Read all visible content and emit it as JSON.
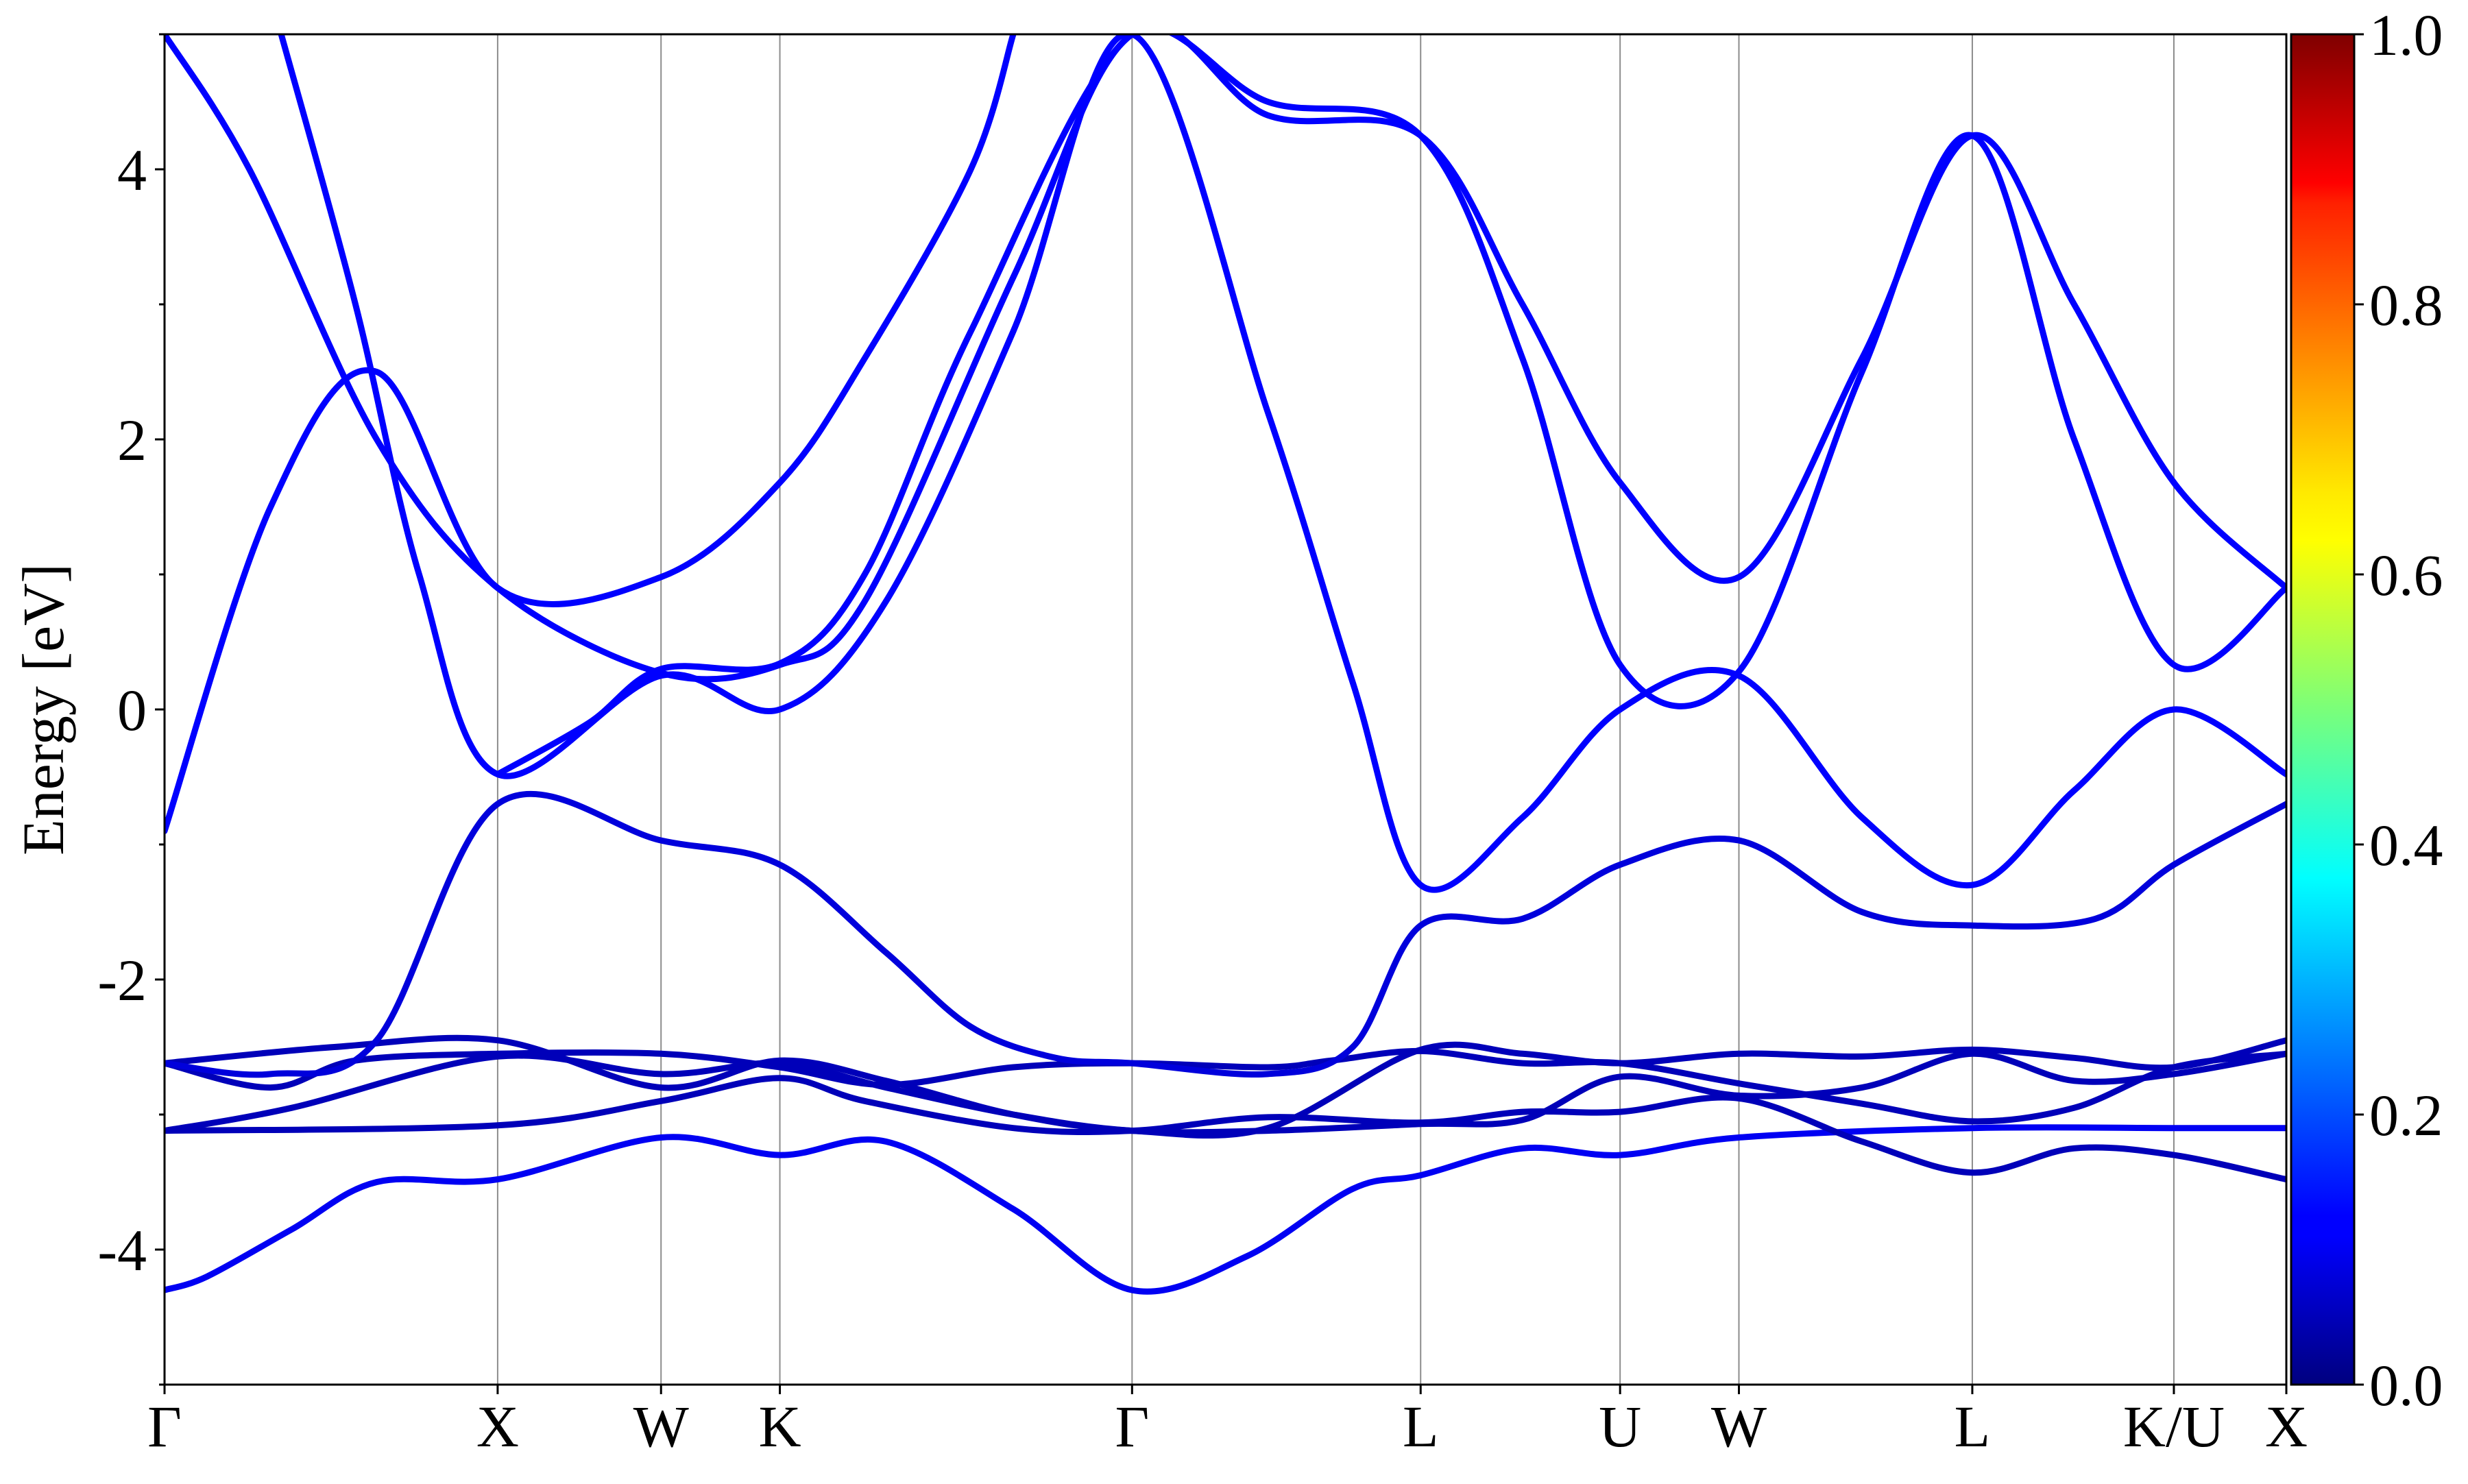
{
  "chart_data": {
    "type": "line",
    "ylabel": "Energy [eV]",
    "xlabel": "",
    "ylim": [
      -5,
      5
    ],
    "y_ticks": [
      "4",
      "2",
      "0",
      "-2",
      "-4"
    ],
    "y_tick_values": [
      4,
      2,
      0,
      -2,
      -4
    ],
    "high_symmetry_points": [
      {
        "label": "Γ",
        "k": 0.0
      },
      {
        "label": "X",
        "k": 0.157
      },
      {
        "label": "W",
        "k": 0.234
      },
      {
        "label": "K",
        "k": 0.29
      },
      {
        "label": "Γ",
        "k": 0.456
      },
      {
        "label": "L",
        "k": 0.592
      },
      {
        "label": "U",
        "k": 0.686
      },
      {
        "label": "W",
        "k": 0.742
      },
      {
        "label": "L",
        "k": 0.852
      },
      {
        "label": "K/U",
        "k": 0.947
      },
      {
        "label": "X",
        "k": 1.0
      }
    ],
    "colorbar": {
      "range": [
        0.0,
        1.0
      ],
      "ticks": [
        "1.0",
        "0.8",
        "0.6",
        "0.4",
        "0.2",
        "0.0"
      ],
      "tick_values": [
        1.0,
        0.8,
        0.6,
        0.4,
        0.2,
        0.0
      ],
      "colormap": "jet"
    },
    "grid": "vertical lines at high-symmetry points",
    "series": [
      {
        "weight": 0.1,
        "points": [
          [
            0.0,
            -4.3
          ],
          [
            0.02,
            -4.2
          ],
          [
            0.06,
            -3.85
          ],
          [
            0.1,
            -3.5
          ],
          [
            0.157,
            -3.48
          ],
          [
            0.234,
            -3.17
          ],
          [
            0.29,
            -3.3
          ],
          [
            0.34,
            -3.2
          ],
          [
            0.4,
            -3.7
          ],
          [
            0.456,
            -4.3
          ],
          [
            0.51,
            -4.05
          ],
          [
            0.56,
            -3.55
          ],
          [
            0.592,
            -3.45
          ],
          [
            0.64,
            -3.25
          ],
          [
            0.686,
            -3.3
          ],
          [
            0.742,
            -3.17
          ],
          [
            0.852,
            -3.1
          ],
          [
            0.947,
            -3.1
          ],
          [
            1.0,
            -3.1
          ]
        ]
      },
      {
        "weight": 0.05,
        "points": [
          [
            0.0,
            -3.12
          ],
          [
            0.157,
            -3.08
          ],
          [
            0.234,
            -2.9
          ],
          [
            0.29,
            -2.73
          ],
          [
            0.33,
            -2.9
          ],
          [
            0.4,
            -3.1
          ],
          [
            0.456,
            -3.12
          ],
          [
            0.52,
            -3.02
          ],
          [
            0.592,
            -3.06
          ],
          [
            0.64,
            -2.98
          ],
          [
            0.686,
            -2.98
          ],
          [
            0.742,
            -2.88
          ],
          [
            0.8,
            -3.2
          ],
          [
            0.852,
            -3.43
          ],
          [
            0.9,
            -3.25
          ],
          [
            0.947,
            -3.3
          ],
          [
            1.0,
            -3.48
          ]
        ]
      },
      {
        "weight": 0.05,
        "points": [
          [
            0.0,
            -3.12
          ],
          [
            0.06,
            -2.95
          ],
          [
            0.157,
            -2.57
          ],
          [
            0.234,
            -2.7
          ],
          [
            0.29,
            -2.62
          ],
          [
            0.34,
            -2.8
          ],
          [
            0.4,
            -3.0
          ],
          [
            0.456,
            -3.12
          ],
          [
            0.52,
            -3.12
          ],
          [
            0.592,
            -3.07
          ],
          [
            0.64,
            -3.04
          ],
          [
            0.686,
            -2.72
          ],
          [
            0.742,
            -2.86
          ],
          [
            0.8,
            -2.8
          ],
          [
            0.852,
            -2.55
          ],
          [
            0.9,
            -2.75
          ],
          [
            0.947,
            -2.7
          ],
          [
            1.0,
            -2.55
          ]
        ]
      },
      {
        "weight": 0.05,
        "points": [
          [
            0.0,
            -2.62
          ],
          [
            0.08,
            -2.5
          ],
          [
            0.157,
            -2.45
          ],
          [
            0.234,
            -2.8
          ],
          [
            0.29,
            -2.6
          ],
          [
            0.34,
            -2.75
          ],
          [
            0.4,
            -3.0
          ],
          [
            0.456,
            -3.12
          ],
          [
            0.52,
            -3.1
          ],
          [
            0.592,
            -2.52
          ],
          [
            0.64,
            -2.55
          ],
          [
            0.686,
            -2.62
          ],
          [
            0.742,
            -2.55
          ],
          [
            0.8,
            -2.57
          ],
          [
            0.852,
            -2.52
          ],
          [
            0.9,
            -2.58
          ],
          [
            0.947,
            -2.65
          ],
          [
            1.0,
            -2.45
          ]
        ]
      },
      {
        "weight": 0.05,
        "points": [
          [
            0.0,
            -2.62
          ],
          [
            0.05,
            -2.8
          ],
          [
            0.09,
            -2.6
          ],
          [
            0.157,
            -2.55
          ],
          [
            0.234,
            -2.55
          ],
          [
            0.29,
            -2.65
          ],
          [
            0.34,
            -2.78
          ],
          [
            0.4,
            -2.65
          ],
          [
            0.456,
            -2.62
          ],
          [
            0.52,
            -2.65
          ],
          [
            0.55,
            -2.6
          ],
          [
            0.592,
            -2.53
          ],
          [
            0.64,
            -2.62
          ],
          [
            0.686,
            -2.62
          ],
          [
            0.742,
            -2.77
          ],
          [
            0.8,
            -2.92
          ],
          [
            0.852,
            -3.05
          ],
          [
            0.9,
            -2.95
          ],
          [
            0.947,
            -2.65
          ],
          [
            1.0,
            -2.55
          ]
        ]
      },
      {
        "weight": 0.08,
        "points": [
          [
            0.0,
            -2.62
          ],
          [
            0.05,
            -2.7
          ],
          [
            0.1,
            -2.45
          ],
          [
            0.157,
            -0.7
          ],
          [
            0.234,
            -0.97
          ],
          [
            0.29,
            -1.15
          ],
          [
            0.34,
            -1.8
          ],
          [
            0.38,
            -2.35
          ],
          [
            0.42,
            -2.58
          ],
          [
            0.456,
            -2.62
          ],
          [
            0.52,
            -2.7
          ],
          [
            0.56,
            -2.5
          ],
          [
            0.592,
            -1.6
          ],
          [
            0.64,
            -1.55
          ],
          [
            0.686,
            -1.15
          ],
          [
            0.742,
            -0.97
          ],
          [
            0.8,
            -1.5
          ],
          [
            0.852,
            -1.6
          ],
          [
            0.91,
            -1.55
          ],
          [
            0.947,
            -1.15
          ],
          [
            1.0,
            -0.7
          ]
        ]
      },
      {
        "weight": 0.12,
        "points": [
          [
            0.0,
            -0.9
          ],
          [
            0.05,
            1.5
          ],
          [
            0.1,
            2.5
          ],
          [
            0.157,
            0.9
          ],
          [
            0.234,
            0.98
          ],
          [
            0.29,
            1.68
          ],
          [
            0.33,
            2.6
          ],
          [
            0.38,
            4.0
          ],
          [
            0.4,
            5.0
          ]
        ]
      },
      {
        "weight": 0.12,
        "points": [
          [
            0.055,
            5.0
          ],
          [
            0.09,
            3.0
          ],
          [
            0.12,
            1.0
          ],
          [
            0.157,
            -0.48
          ],
          [
            0.234,
            0.25
          ],
          [
            0.29,
            0.0
          ],
          [
            0.34,
            0.8
          ],
          [
            0.4,
            2.8
          ],
          [
            0.456,
            5.0
          ],
          [
            0.52,
            2.2
          ],
          [
            0.56,
            0.2
          ],
          [
            0.592,
            -1.3
          ],
          [
            0.64,
            -0.8
          ],
          [
            0.686,
            0.0
          ],
          [
            0.742,
            0.25
          ],
          [
            0.8,
            -0.8
          ],
          [
            0.852,
            -1.3
          ],
          [
            0.9,
            -0.6
          ],
          [
            0.947,
            0.0
          ],
          [
            1.0,
            -0.48
          ]
        ]
      },
      {
        "weight": 0.12,
        "points": [
          [
            0.0,
            5.0
          ],
          [
            0.04,
            4.0
          ],
          [
            0.1,
            2.0
          ],
          [
            0.157,
            0.9
          ],
          [
            0.234,
            0.27
          ],
          [
            0.29,
            0.33
          ],
          [
            0.33,
            0.8
          ],
          [
            0.4,
            3.2
          ],
          [
            0.456,
            5.0
          ],
          [
            0.52,
            4.5
          ],
          [
            0.592,
            4.25
          ],
          [
            0.64,
            2.6
          ],
          [
            0.686,
            0.33
          ],
          [
            0.742,
            0.28
          ],
          [
            0.8,
            2.5
          ],
          [
            0.852,
            4.25
          ],
          [
            0.9,
            2.0
          ],
          [
            0.947,
            0.33
          ],
          [
            1.0,
            0.9
          ]
        ]
      },
      {
        "weight": 0.12,
        "points": [
          [
            0.157,
            -0.48
          ],
          [
            0.2,
            -0.1
          ],
          [
            0.234,
            0.3
          ],
          [
            0.29,
            0.34
          ],
          [
            0.33,
            1.0
          ],
          [
            0.38,
            2.8
          ],
          [
            0.456,
            5.0
          ],
          [
            0.52,
            4.4
          ],
          [
            0.592,
            4.25
          ],
          [
            0.64,
            3.0
          ],
          [
            0.686,
            1.68
          ],
          [
            0.742,
            0.98
          ],
          [
            0.8,
            2.6
          ],
          [
            0.852,
            4.25
          ],
          [
            0.9,
            3.0
          ],
          [
            0.947,
            1.68
          ],
          [
            1.0,
            0.9
          ]
        ]
      }
    ]
  }
}
